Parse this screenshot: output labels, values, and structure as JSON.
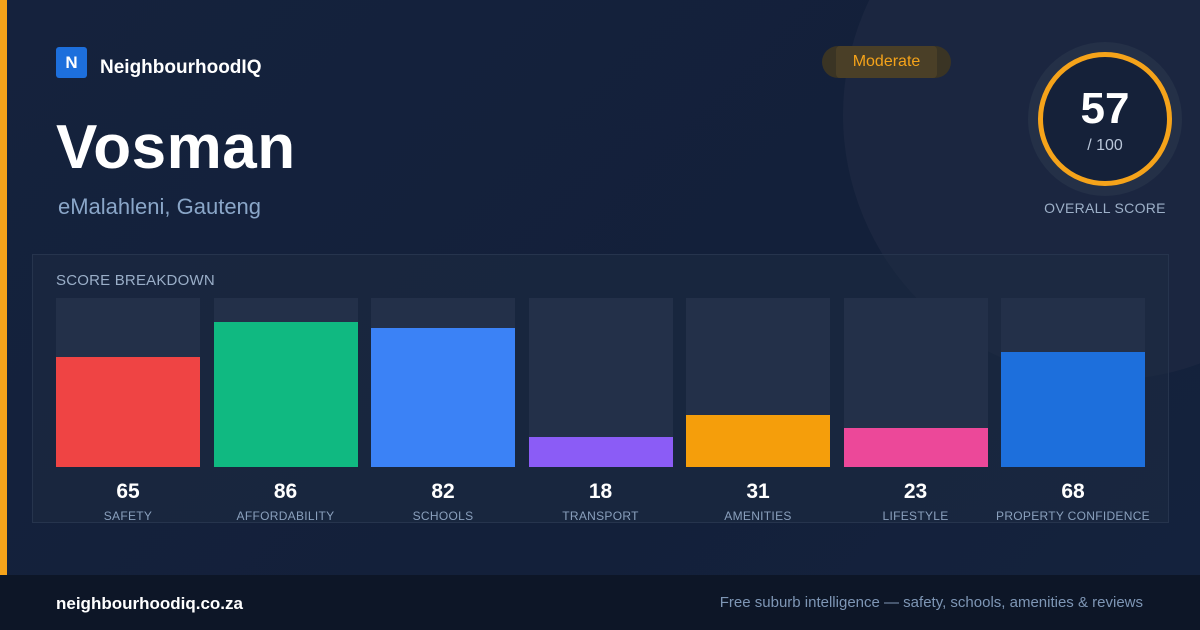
{
  "brand": {
    "logo_letter": "N",
    "name": "NeighbourhoodIQ",
    "logo_color": "#1d6fdc"
  },
  "suburb": {
    "name": "Vosman",
    "location": "eMalahleni, Gauteng"
  },
  "rating": {
    "label": "Moderate",
    "color": "#f5a31a"
  },
  "overall": {
    "score": "57",
    "max": "/ 100",
    "caption": "OVERALL SCORE",
    "value": 57
  },
  "breakdown": {
    "title": "SCORE BREAKDOWN",
    "items": [
      {
        "label": "SAFETY",
        "value": "65",
        "score": 65,
        "color": "#ef4444"
      },
      {
        "label": "AFFORDABILITY",
        "value": "86",
        "score": 86,
        "color": "#10b981"
      },
      {
        "label": "SCHOOLS",
        "value": "82",
        "score": 82,
        "color": "#3b82f6"
      },
      {
        "label": "TRANSPORT",
        "value": "18",
        "score": 18,
        "color": "#8b5cf6"
      },
      {
        "label": "AMENITIES",
        "value": "31",
        "score": 31,
        "color": "#f59e0b"
      },
      {
        "label": "LIFESTYLE",
        "value": "23",
        "score": 23,
        "color": "#ec4899"
      },
      {
        "label": "PROPERTY CONFIDENCE",
        "value": "68",
        "score": 68,
        "color": "#1d6fdc"
      }
    ]
  },
  "footer": {
    "url": "neighbourhoodiq.co.za",
    "tagline": "Free suburb intelligence — safety, schools, amenities & reviews"
  }
}
